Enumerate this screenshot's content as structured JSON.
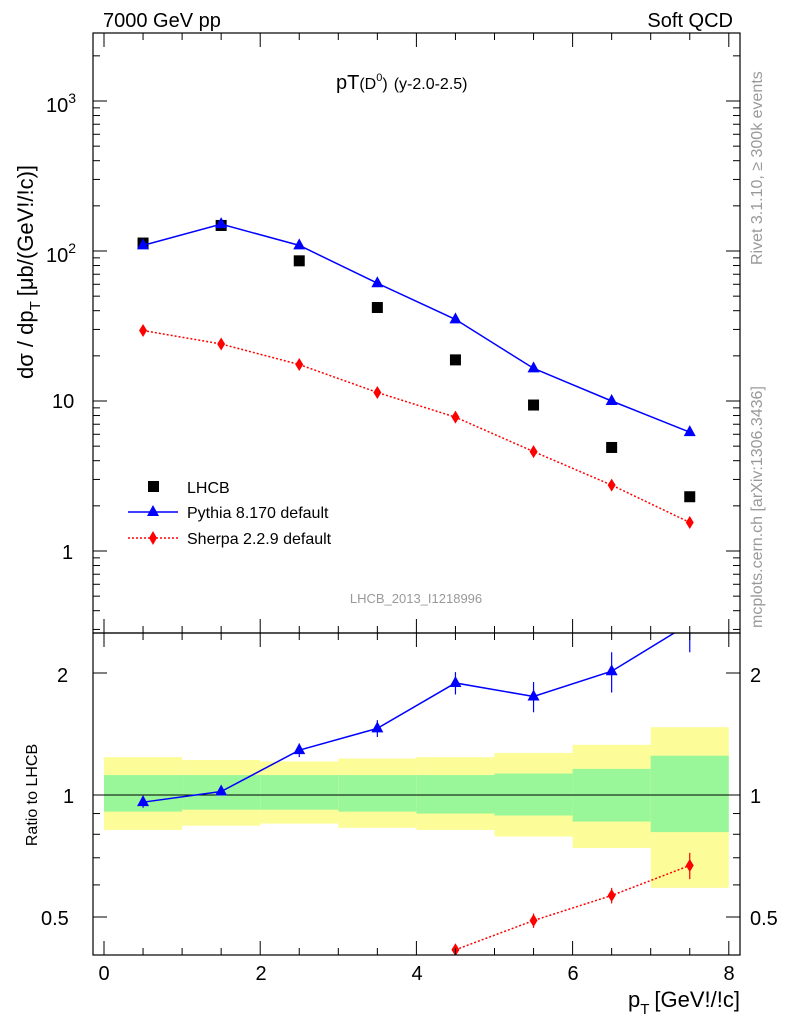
{
  "header": {
    "left": "7000 GeV pp",
    "right": "Soft QCD",
    "plot_title": "pT(D0) (y-2.0-2.5)"
  },
  "side_texts": {
    "rivet": "Rivet 3.1.10, ≥ 300k events",
    "mcplots": "mcplots.cern.ch [arXiv:1306.3436]"
  },
  "reference": "LHCB_2013_I1218996",
  "chart_data": [
    {
      "type": "scatter",
      "panel": "main",
      "title": "pT(D0) (y-2.0-2.5)",
      "xlabel": "pT [GeV!/!c]",
      "ylabel": "dσ / dpT [μb/(GeV!/!c)]",
      "yscale": "log",
      "ylim": [
        0.3,
        3000
      ],
      "xlim": [
        -0.2,
        8.2
      ],
      "y_tick_labels": [
        "1",
        "10",
        "10^2",
        "10^3"
      ],
      "series": [
        {
          "name": "LHCB",
          "color": "#000000",
          "marker": "square",
          "x": [
            0.5,
            1.5,
            2.5,
            3.5,
            4.5,
            5.5,
            6.5,
            7.5
          ],
          "y": [
            113,
            148,
            86,
            42,
            18.8,
            9.4,
            4.9,
            2.3
          ]
        },
        {
          "name": "Pythia 8.170 default",
          "color": "#0000ff",
          "marker": "triangle",
          "line": "solid",
          "x": [
            0.5,
            1.5,
            2.5,
            3.5,
            4.5,
            5.5,
            6.5,
            7.5
          ],
          "y": [
            109,
            151,
            109,
            61,
            35,
            16.5,
            10,
            6.2
          ]
        },
        {
          "name": "Sherpa 2.2.9 default",
          "color": "#ff0000",
          "marker": "diamond",
          "line": "dotted",
          "x": [
            0.5,
            1.5,
            2.5,
            3.5,
            4.5,
            5.5,
            6.5,
            7.5
          ],
          "y": [
            29.5,
            24,
            17.5,
            11.4,
            7.8,
            4.6,
            2.75,
            1.55
          ]
        }
      ]
    },
    {
      "type": "line",
      "panel": "ratio",
      "xlabel": "pT [GeV!/!c]",
      "ylabel": "Ratio to LHCB",
      "yscale": "log",
      "ylim": [
        0.38,
        2.3
      ],
      "xlim": [
        -0.2,
        8.2
      ],
      "x_tick_labels": [
        "0",
        "2",
        "4",
        "6",
        "8"
      ],
      "y_tick_labels": [
        "0.5",
        "1",
        "2"
      ],
      "uncertainty_bands": {
        "x_edges": [
          0,
          1,
          2,
          3,
          4,
          5,
          6,
          7,
          8
        ],
        "inner_low": [
          0.91,
          0.92,
          0.92,
          0.91,
          0.9,
          0.89,
          0.86,
          0.81
        ],
        "inner_high": [
          1.12,
          1.12,
          1.12,
          1.12,
          1.12,
          1.13,
          1.16,
          1.25
        ],
        "outer_low": [
          0.82,
          0.84,
          0.85,
          0.83,
          0.82,
          0.79,
          0.74,
          0.59
        ],
        "outer_high": [
          1.24,
          1.22,
          1.21,
          1.23,
          1.24,
          1.27,
          1.33,
          1.47
        ],
        "inner_color": "#99f799",
        "outer_color": "#fcfc99"
      },
      "series": [
        {
          "name": "Pythia 8.170 default",
          "color": "#0000ff",
          "x": [
            0.5,
            1.5,
            2.5,
            3.5,
            4.5,
            5.5,
            6.5,
            7.5
          ],
          "y": [
            0.96,
            1.02,
            1.29,
            1.46,
            1.89,
            1.75,
            2.02,
            2.65
          ],
          "err": [
            0.03,
            0.02,
            0.05,
            0.07,
            0.12,
            0.15,
            0.23,
            0.4
          ]
        },
        {
          "name": "Sherpa 2.2.9 default",
          "color": "#ff0000",
          "x": [
            4.5,
            5.5,
            6.5,
            7.5
          ],
          "y": [
            0.415,
            0.49,
            0.565,
            0.67
          ],
          "err": [
            0.01,
            0.02,
            0.025,
            0.05
          ]
        }
      ]
    }
  ]
}
